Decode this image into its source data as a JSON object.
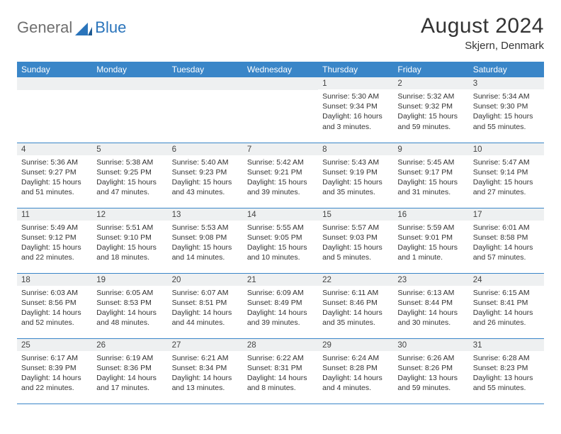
{
  "logo": {
    "part1": "General",
    "part2": "Blue"
  },
  "title": "August 2024",
  "subtitle": "Skjern, Denmark",
  "colors": {
    "header_bg": "#3a86c8",
    "header_text": "#ffffff",
    "dayrow_bg": "#eef0f1",
    "border": "#3a86c8",
    "logo_gray": "#6f6f6f",
    "logo_blue": "#2a74bb"
  },
  "weekdays": [
    "Sunday",
    "Monday",
    "Tuesday",
    "Wednesday",
    "Thursday",
    "Friday",
    "Saturday"
  ],
  "grid": [
    [
      {
        "blank": true
      },
      {
        "blank": true
      },
      {
        "blank": true
      },
      {
        "blank": true
      },
      {
        "day": "1",
        "sunrise": "Sunrise: 5:30 AM",
        "sunset": "Sunset: 9:34 PM",
        "daylight": "Daylight: 16 hours and 3 minutes."
      },
      {
        "day": "2",
        "sunrise": "Sunrise: 5:32 AM",
        "sunset": "Sunset: 9:32 PM",
        "daylight": "Daylight: 15 hours and 59 minutes."
      },
      {
        "day": "3",
        "sunrise": "Sunrise: 5:34 AM",
        "sunset": "Sunset: 9:30 PM",
        "daylight": "Daylight: 15 hours and 55 minutes."
      }
    ],
    [
      {
        "day": "4",
        "sunrise": "Sunrise: 5:36 AM",
        "sunset": "Sunset: 9:27 PM",
        "daylight": "Daylight: 15 hours and 51 minutes."
      },
      {
        "day": "5",
        "sunrise": "Sunrise: 5:38 AM",
        "sunset": "Sunset: 9:25 PM",
        "daylight": "Daylight: 15 hours and 47 minutes."
      },
      {
        "day": "6",
        "sunrise": "Sunrise: 5:40 AM",
        "sunset": "Sunset: 9:23 PM",
        "daylight": "Daylight: 15 hours and 43 minutes."
      },
      {
        "day": "7",
        "sunrise": "Sunrise: 5:42 AM",
        "sunset": "Sunset: 9:21 PM",
        "daylight": "Daylight: 15 hours and 39 minutes."
      },
      {
        "day": "8",
        "sunrise": "Sunrise: 5:43 AM",
        "sunset": "Sunset: 9:19 PM",
        "daylight": "Daylight: 15 hours and 35 minutes."
      },
      {
        "day": "9",
        "sunrise": "Sunrise: 5:45 AM",
        "sunset": "Sunset: 9:17 PM",
        "daylight": "Daylight: 15 hours and 31 minutes."
      },
      {
        "day": "10",
        "sunrise": "Sunrise: 5:47 AM",
        "sunset": "Sunset: 9:14 PM",
        "daylight": "Daylight: 15 hours and 27 minutes."
      }
    ],
    [
      {
        "day": "11",
        "sunrise": "Sunrise: 5:49 AM",
        "sunset": "Sunset: 9:12 PM",
        "daylight": "Daylight: 15 hours and 22 minutes."
      },
      {
        "day": "12",
        "sunrise": "Sunrise: 5:51 AM",
        "sunset": "Sunset: 9:10 PM",
        "daylight": "Daylight: 15 hours and 18 minutes."
      },
      {
        "day": "13",
        "sunrise": "Sunrise: 5:53 AM",
        "sunset": "Sunset: 9:08 PM",
        "daylight": "Daylight: 15 hours and 14 minutes."
      },
      {
        "day": "14",
        "sunrise": "Sunrise: 5:55 AM",
        "sunset": "Sunset: 9:05 PM",
        "daylight": "Daylight: 15 hours and 10 minutes."
      },
      {
        "day": "15",
        "sunrise": "Sunrise: 5:57 AM",
        "sunset": "Sunset: 9:03 PM",
        "daylight": "Daylight: 15 hours and 5 minutes."
      },
      {
        "day": "16",
        "sunrise": "Sunrise: 5:59 AM",
        "sunset": "Sunset: 9:01 PM",
        "daylight": "Daylight: 15 hours and 1 minute."
      },
      {
        "day": "17",
        "sunrise": "Sunrise: 6:01 AM",
        "sunset": "Sunset: 8:58 PM",
        "daylight": "Daylight: 14 hours and 57 minutes."
      }
    ],
    [
      {
        "day": "18",
        "sunrise": "Sunrise: 6:03 AM",
        "sunset": "Sunset: 8:56 PM",
        "daylight": "Daylight: 14 hours and 52 minutes."
      },
      {
        "day": "19",
        "sunrise": "Sunrise: 6:05 AM",
        "sunset": "Sunset: 8:53 PM",
        "daylight": "Daylight: 14 hours and 48 minutes."
      },
      {
        "day": "20",
        "sunrise": "Sunrise: 6:07 AM",
        "sunset": "Sunset: 8:51 PM",
        "daylight": "Daylight: 14 hours and 44 minutes."
      },
      {
        "day": "21",
        "sunrise": "Sunrise: 6:09 AM",
        "sunset": "Sunset: 8:49 PM",
        "daylight": "Daylight: 14 hours and 39 minutes."
      },
      {
        "day": "22",
        "sunrise": "Sunrise: 6:11 AM",
        "sunset": "Sunset: 8:46 PM",
        "daylight": "Daylight: 14 hours and 35 minutes."
      },
      {
        "day": "23",
        "sunrise": "Sunrise: 6:13 AM",
        "sunset": "Sunset: 8:44 PM",
        "daylight": "Daylight: 14 hours and 30 minutes."
      },
      {
        "day": "24",
        "sunrise": "Sunrise: 6:15 AM",
        "sunset": "Sunset: 8:41 PM",
        "daylight": "Daylight: 14 hours and 26 minutes."
      }
    ],
    [
      {
        "day": "25",
        "sunrise": "Sunrise: 6:17 AM",
        "sunset": "Sunset: 8:39 PM",
        "daylight": "Daylight: 14 hours and 22 minutes."
      },
      {
        "day": "26",
        "sunrise": "Sunrise: 6:19 AM",
        "sunset": "Sunset: 8:36 PM",
        "daylight": "Daylight: 14 hours and 17 minutes."
      },
      {
        "day": "27",
        "sunrise": "Sunrise: 6:21 AM",
        "sunset": "Sunset: 8:34 PM",
        "daylight": "Daylight: 14 hours and 13 minutes."
      },
      {
        "day": "28",
        "sunrise": "Sunrise: 6:22 AM",
        "sunset": "Sunset: 8:31 PM",
        "daylight": "Daylight: 14 hours and 8 minutes."
      },
      {
        "day": "29",
        "sunrise": "Sunrise: 6:24 AM",
        "sunset": "Sunset: 8:28 PM",
        "daylight": "Daylight: 14 hours and 4 minutes."
      },
      {
        "day": "30",
        "sunrise": "Sunrise: 6:26 AM",
        "sunset": "Sunset: 8:26 PM",
        "daylight": "Daylight: 13 hours and 59 minutes."
      },
      {
        "day": "31",
        "sunrise": "Sunrise: 6:28 AM",
        "sunset": "Sunset: 8:23 PM",
        "daylight": "Daylight: 13 hours and 55 minutes."
      }
    ]
  ]
}
